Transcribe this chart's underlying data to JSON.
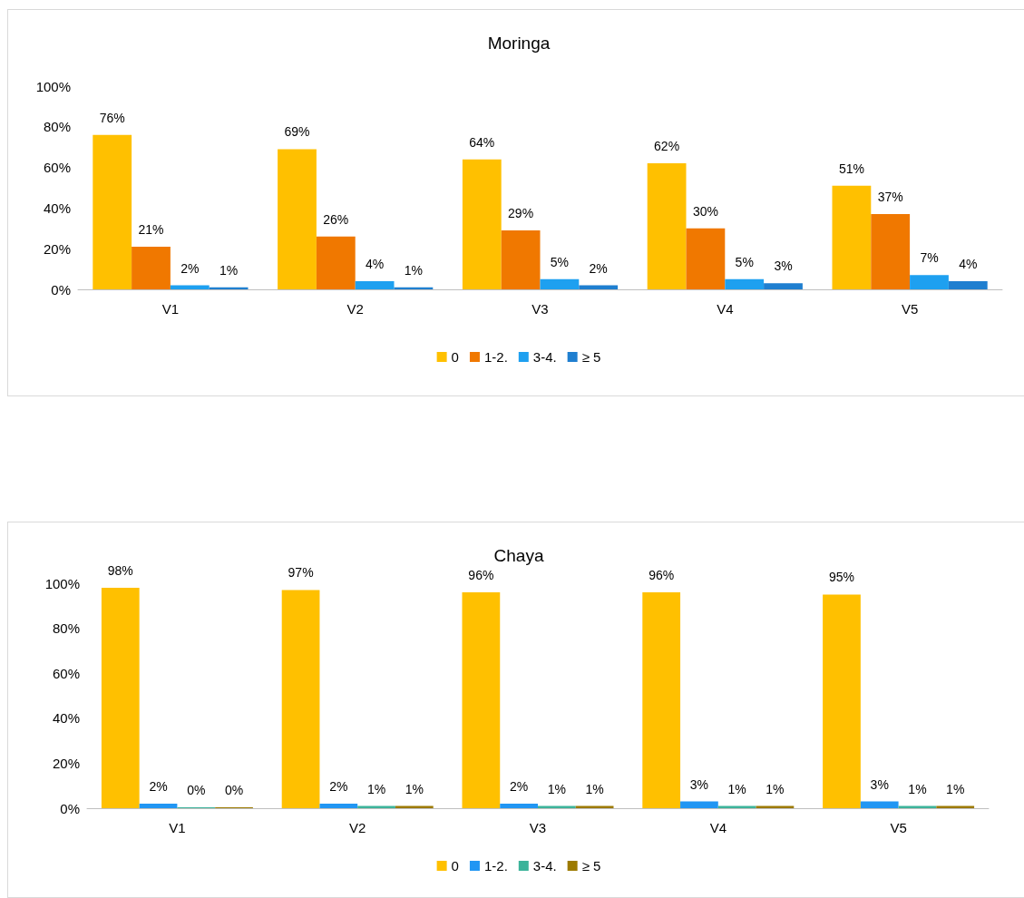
{
  "chart_data": [
    {
      "type": "bar",
      "title": "Moringa",
      "categories": [
        "V1",
        "V2",
        "V3",
        "V4",
        "V5"
      ],
      "ylim": [
        0,
        100
      ],
      "yticks": [
        {
          "value": 0,
          "label": "0%"
        },
        {
          "value": 20,
          "label": "20%"
        },
        {
          "value": 40,
          "label": "40%"
        },
        {
          "value": 60,
          "label": "60%"
        },
        {
          "value": 80,
          "label": "80%"
        },
        {
          "value": 100,
          "label": "100%"
        }
      ],
      "grid": false,
      "legend": "bottom",
      "series": [
        {
          "name": "0",
          "color": "#ffc000",
          "values": [
            76,
            69,
            64,
            62,
            51
          ],
          "value_labels": [
            "76%",
            "69%",
            "64%",
            "62%",
            "51%"
          ]
        },
        {
          "name": "1-2.",
          "color": "#f07800",
          "values": [
            21,
            26,
            29,
            30,
            37
          ],
          "value_labels": [
            "21%",
            "26%",
            "29%",
            "30%",
            "37%"
          ]
        },
        {
          "name": "3-4.",
          "color": "#1ea0f0",
          "values": [
            2,
            4,
            5,
            5,
            7
          ],
          "value_labels": [
            "2%",
            "4%",
            "5%",
            "5%",
            "7%"
          ]
        },
        {
          "name": "≥ 5",
          "color": "#1f7fd0",
          "values": [
            1,
            1,
            2,
            3,
            4
          ],
          "value_labels": [
            "1%",
            "1%",
            "2%",
            "3%",
            "4%"
          ]
        }
      ]
    },
    {
      "type": "bar",
      "title": "Chaya",
      "categories": [
        "V1",
        "V2",
        "V3",
        "V4",
        "V5"
      ],
      "ylim": [
        0,
        100
      ],
      "yticks": [
        {
          "value": 0,
          "label": "0%"
        },
        {
          "value": 20,
          "label": "20%"
        },
        {
          "value": 40,
          "label": "40%"
        },
        {
          "value": 60,
          "label": "60%"
        },
        {
          "value": 80,
          "label": "80%"
        },
        {
          "value": 100,
          "label": "100%"
        }
      ],
      "grid": false,
      "legend": "bottom",
      "series": [
        {
          "name": "0",
          "color": "#ffc000",
          "values": [
            98,
            97,
            96,
            96,
            95
          ],
          "value_labels": [
            "98%",
            "97%",
            "96%",
            "96%",
            "95%"
          ]
        },
        {
          "name": "1-2.",
          "color": "#2196f3",
          "values": [
            2,
            2,
            2,
            3,
            3
          ],
          "value_labels": [
            "2%",
            "2%",
            "2%",
            "3%",
            "3%"
          ]
        },
        {
          "name": "3-4.",
          "color": "#3cb39a",
          "values": [
            0,
            1,
            1,
            1,
            1
          ],
          "value_labels": [
            "0%",
            "1%",
            "1%",
            "1%",
            "1%"
          ]
        },
        {
          "name": "≥ 5",
          "color": "#9c7a00",
          "values": [
            0,
            1,
            1,
            1,
            1
          ],
          "value_labels": [
            "0%",
            "1%",
            "1%",
            "1%",
            "1%"
          ]
        }
      ]
    }
  ]
}
